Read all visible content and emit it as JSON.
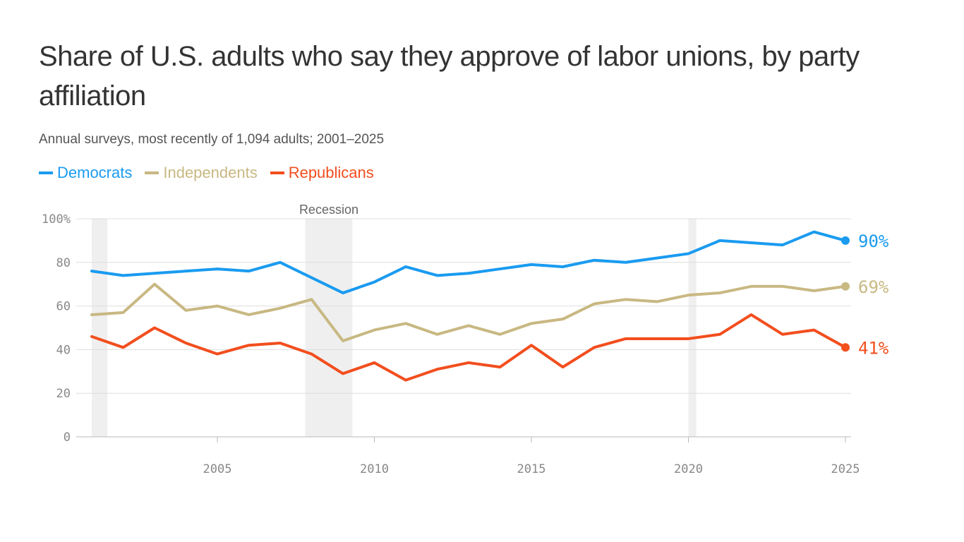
{
  "title": "Share of U.S. adults who say they approve of labor unions, by party affiliation",
  "subtitle": "Annual surveys, most recently of 1,094 adults; 2001–2025",
  "chart_data": {
    "type": "line",
    "title": "Share of U.S. adults who say they approve of labor unions, by party affiliation",
    "xlabel": "",
    "ylabel": "",
    "xlim": [
      2001,
      2025
    ],
    "ylim": [
      0,
      100
    ],
    "x": [
      2001,
      2002,
      2003,
      2004,
      2005,
      2006,
      2007,
      2008,
      2009,
      2010,
      2011,
      2012,
      2013,
      2014,
      2015,
      2016,
      2017,
      2018,
      2019,
      2020,
      2021,
      2022,
      2023,
      2024,
      2025
    ],
    "x_ticks": [
      "2005",
      "2010",
      "2015",
      "2020",
      "2025"
    ],
    "x_tick_values": [
      2005,
      2010,
      2015,
      2020,
      2025
    ],
    "y_ticks": [
      "100%",
      "80",
      "60",
      "40",
      "20",
      "0"
    ],
    "y_tick_values": [
      100,
      80,
      60,
      40,
      20,
      0
    ],
    "recessions": [
      {
        "start": 2001.0,
        "end": 2001.5,
        "label": ""
      },
      {
        "start": 2007.8,
        "end": 2009.3,
        "label": "Recession"
      },
      {
        "start": 2020.0,
        "end": 2020.25,
        "label": ""
      }
    ],
    "series": [
      {
        "name": "Democrats",
        "color": "#1a9bf0",
        "end_label": "90%",
        "values": [
          76,
          74,
          75,
          76,
          77,
          76,
          80,
          73,
          66,
          71,
          78,
          74,
          75,
          77,
          79,
          78,
          81,
          80,
          82,
          84,
          90,
          89,
          88,
          94,
          90
        ]
      },
      {
        "name": "Independents",
        "color": "#c8b882",
        "end_label": "69%",
        "values": [
          56,
          57,
          70,
          58,
          60,
          56,
          59,
          63,
          44,
          49,
          52,
          47,
          51,
          47,
          52,
          54,
          61,
          63,
          62,
          65,
          66,
          69,
          69,
          67,
          69
        ]
      },
      {
        "name": "Republicans",
        "color": "#f24e1e",
        "end_label": "41%",
        "values": [
          46,
          41,
          50,
          43,
          38,
          42,
          43,
          38,
          29,
          34,
          26,
          31,
          34,
          32,
          42,
          32,
          41,
          45,
          45,
          45,
          47,
          56,
          47,
          49,
          41
        ]
      }
    ]
  }
}
